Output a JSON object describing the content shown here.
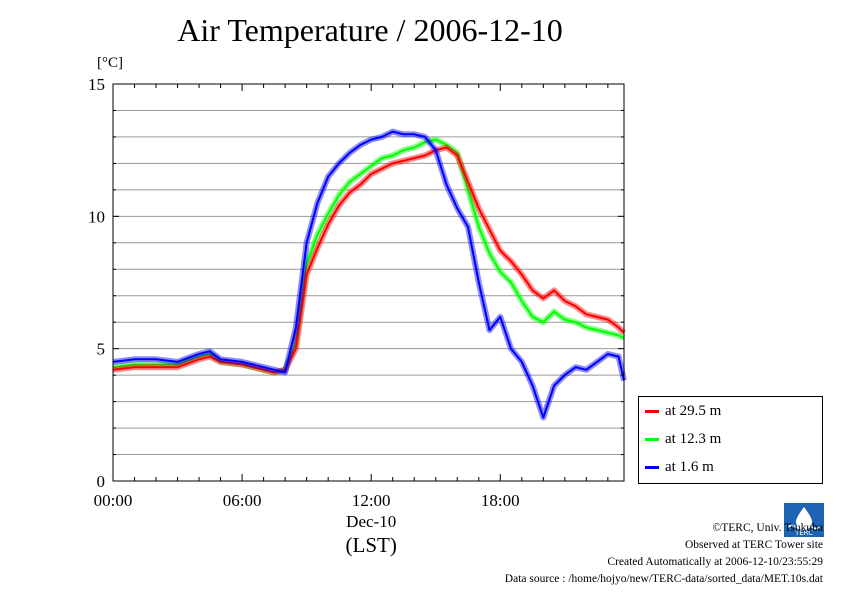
{
  "chart_data": {
    "type": "line",
    "title": "Air Temperature / 2006-12-10",
    "ylabel": "[°C]",
    "xlabel": "(LST)",
    "date_label": "Dec-10",
    "ylim": [
      0,
      15
    ],
    "yticks": [
      0,
      5,
      10,
      15
    ],
    "xlim": [
      0,
      23.75
    ],
    "xticks": [
      0,
      6,
      12,
      18
    ],
    "xtick_labels": [
      "00:00",
      "06:00",
      "12:00",
      "18:00"
    ],
    "grid": true,
    "legend_position": "bottom-right",
    "x": [
      0,
      1,
      2,
      3,
      4,
      4.5,
      5,
      6,
      7,
      7.5,
      8,
      8.5,
      9,
      9.5,
      10,
      10.5,
      11,
      11.5,
      12,
      12.5,
      13,
      13.5,
      14,
      14.5,
      15,
      15.5,
      16,
      16.5,
      17,
      17.5,
      18,
      18.5,
      19,
      19.5,
      20,
      20.5,
      21,
      21.5,
      22,
      22.5,
      23,
      23.5,
      23.75
    ],
    "series": [
      {
        "name": "at 29.5 m",
        "color": "#ff0000",
        "values": [
          4.2,
          4.3,
          4.3,
          4.3,
          4.6,
          4.7,
          4.5,
          4.4,
          4.2,
          4.1,
          4.2,
          5.0,
          7.8,
          8.8,
          9.7,
          10.4,
          10.9,
          11.2,
          11.6,
          11.8,
          12.0,
          12.1,
          12.2,
          12.3,
          12.5,
          12.6,
          12.3,
          11.3,
          10.3,
          9.5,
          8.7,
          8.3,
          7.8,
          7.2,
          6.9,
          7.2,
          6.8,
          6.6,
          6.3,
          6.2,
          6.1,
          5.8,
          5.6
        ]
      },
      {
        "name": "at 12.3 m",
        "color": "#00ff00",
        "values": [
          4.3,
          4.4,
          4.4,
          4.4,
          4.7,
          4.8,
          4.5,
          4.4,
          4.2,
          4.1,
          4.2,
          5.2,
          8.2,
          9.3,
          10.1,
          10.8,
          11.3,
          11.6,
          11.9,
          12.2,
          12.3,
          12.5,
          12.6,
          12.8,
          12.9,
          12.7,
          12.4,
          11.0,
          9.6,
          8.6,
          7.9,
          7.5,
          6.8,
          6.2,
          6.0,
          6.4,
          6.1,
          6.0,
          5.8,
          5.7,
          5.6,
          5.5,
          5.4
        ]
      },
      {
        "name": "at 1.6 m",
        "color": "#0000ff",
        "values": [
          4.5,
          4.6,
          4.6,
          4.5,
          4.8,
          4.9,
          4.6,
          4.5,
          4.3,
          4.2,
          4.1,
          5.8,
          9.0,
          10.5,
          11.5,
          12.0,
          12.4,
          12.7,
          12.9,
          13.0,
          13.2,
          13.1,
          13.1,
          13.0,
          12.5,
          11.2,
          10.3,
          9.6,
          7.5,
          5.7,
          6.2,
          5.0,
          4.5,
          3.6,
          2.4,
          3.6,
          4.0,
          4.3,
          4.2,
          4.5,
          4.8,
          4.7,
          3.8
        ]
      }
    ]
  },
  "footer": {
    "copyright": "©TERC, Univ. Tsukuba",
    "observed": "Observed at TERC Tower site",
    "created": "Created Automatically at 2006-12-10/23:55:29",
    "source": "Data source : /home/hojyo/new/TERC-data/sorted_data/MET.10s.dat",
    "logo_text": "TERC"
  },
  "colors": {
    "red": "#ff0000",
    "green": "#00ff00",
    "blue": "#0000ff"
  }
}
